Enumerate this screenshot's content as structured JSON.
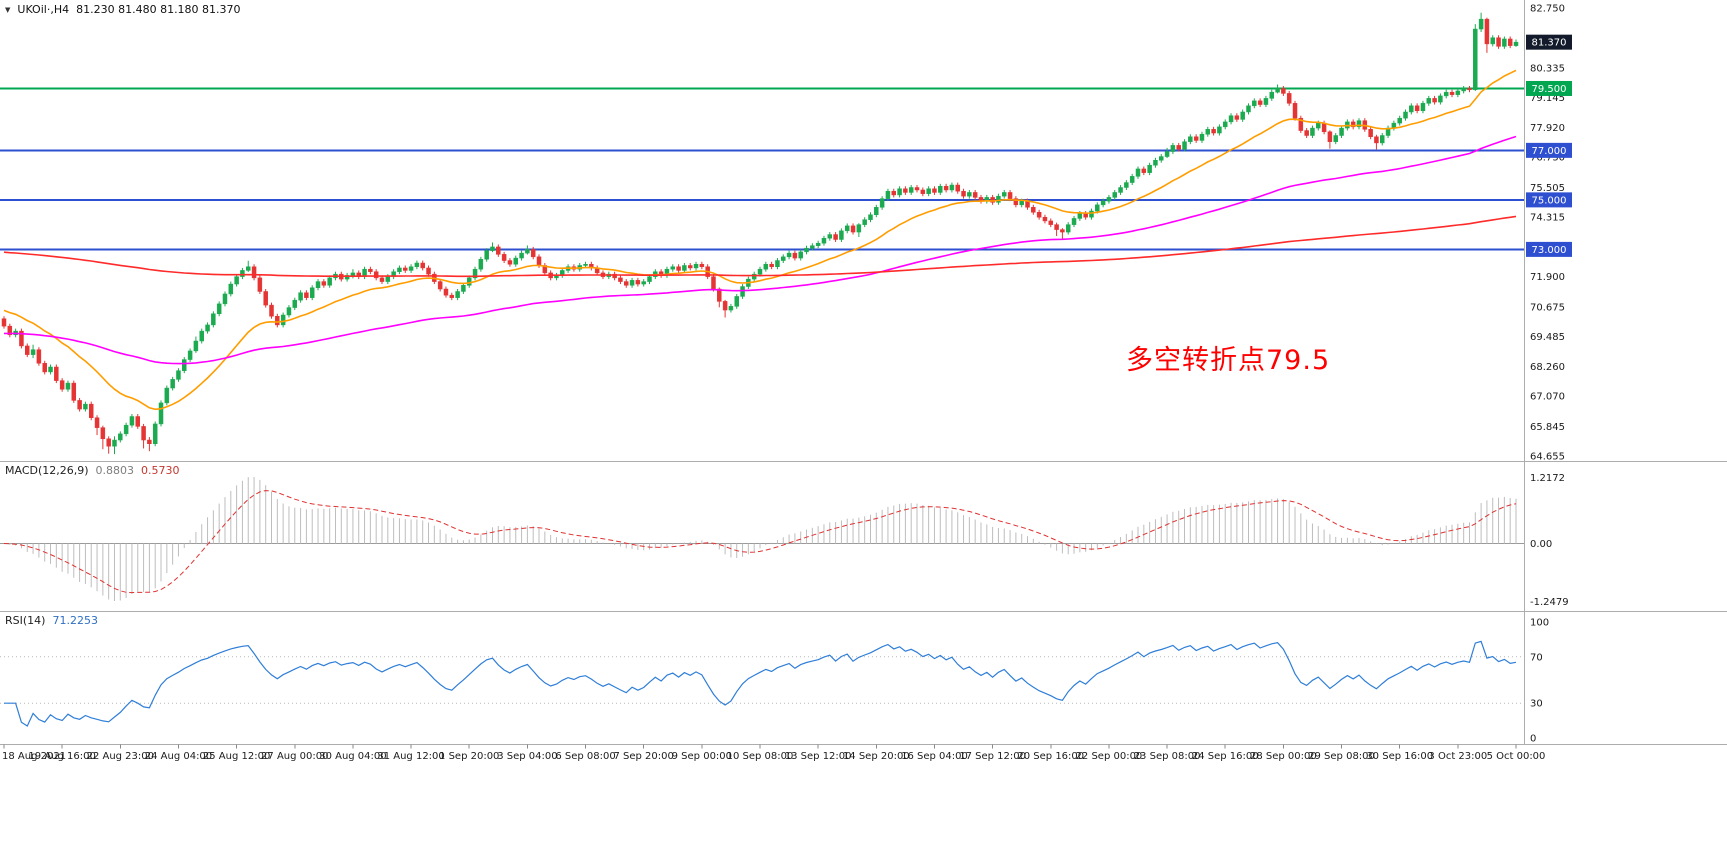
{
  "header": {
    "dropdown_icon": "▼",
    "symbol": "UKOil·,H4",
    "ohlc": "81.230 81.480 81.180 81.370"
  },
  "chart_data": {
    "type": "candlestick",
    "symbol": "UKOil",
    "timeframe": "H4",
    "main": {
      "price_axis": {
        "max": 82.75,
        "min": 64.655,
        "labels": [
          {
            "text": "82.750",
            "price": 82.75
          },
          {
            "text": "80.335",
            "price": 80.335
          },
          {
            "text": "79.145",
            "price": 79.145
          },
          {
            "text": "77.920",
            "price": 77.92
          },
          {
            "text": "76.730",
            "price": 76.73
          },
          {
            "text": "75.505",
            "price": 75.505
          },
          {
            "text": "74.315",
            "price": 74.315
          },
          {
            "text": "71.900",
            "price": 71.9
          },
          {
            "text": "70.675",
            "price": 70.675
          },
          {
            "text": "69.485",
            "price": 69.485
          },
          {
            "text": "68.260",
            "price": 68.26
          },
          {
            "text": "67.070",
            "price": 67.07
          },
          {
            "text": "65.845",
            "price": 65.845
          },
          {
            "text": "64.655",
            "price": 64.655
          }
        ]
      },
      "current_price": {
        "label": "81.370",
        "price": 81.37,
        "box_color": "#131a2b"
      },
      "hlines": [
        {
          "price": 79.5,
          "label": "79.500",
          "color": "#00a650"
        },
        {
          "price": 77.0,
          "label": "77.000",
          "color": "#2e4fd0"
        },
        {
          "price": 75.0,
          "label": "75.000",
          "color": "#2e4fd0"
        },
        {
          "price": 73.0,
          "label": "73.000",
          "color": "#2e4fd0"
        }
      ],
      "annotation": {
        "text": "多空转折点79.5",
        "color": "#ff0000"
      },
      "up_color": "#1caa50",
      "down_color": "#e43434",
      "candles": {
        "first_open": 70.2,
        "default_wick": 0.1,
        "closes": [
          69.9,
          69.55,
          69.7,
          69.1,
          68.75,
          68.95,
          68.4,
          68.05,
          68.25,
          67.7,
          67.35,
          67.6,
          66.9,
          66.55,
          66.75,
          66.2,
          65.8,
          65.35,
          65.05,
          65.3,
          65.55,
          65.9,
          66.25,
          65.85,
          65.3,
          65.15,
          65.95,
          66.8,
          67.4,
          67.75,
          68.1,
          68.55,
          68.9,
          69.3,
          69.7,
          69.95,
          70.4,
          70.8,
          71.2,
          71.6,
          71.9,
          72.15,
          72.3,
          71.85,
          71.3,
          70.75,
          70.3,
          69.95,
          70.35,
          70.65,
          70.95,
          71.25,
          71.05,
          71.45,
          71.7,
          71.55,
          71.85,
          72.0,
          71.8,
          71.95,
          72.05,
          71.9,
          72.2,
          72.1,
          71.85,
          71.7,
          71.9,
          72.1,
          72.25,
          72.15,
          72.3,
          72.45,
          72.25,
          72.0,
          71.7,
          71.4,
          71.15,
          71.05,
          71.3,
          71.55,
          71.85,
          72.2,
          72.6,
          72.95,
          73.1,
          72.8,
          72.55,
          72.4,
          72.65,
          72.85,
          73.0,
          72.7,
          72.35,
          72.05,
          71.85,
          71.95,
          72.15,
          72.3,
          72.2,
          72.35,
          72.4,
          72.25,
          72.05,
          71.9,
          72.0,
          71.85,
          71.7,
          71.55,
          71.75,
          71.6,
          71.7,
          71.9,
          72.1,
          71.95,
          72.2,
          72.3,
          72.15,
          72.35,
          72.25,
          72.4,
          72.3,
          71.9,
          71.4,
          70.9,
          70.55,
          70.7,
          71.1,
          71.5,
          71.8,
          72.0,
          72.2,
          72.4,
          72.3,
          72.55,
          72.7,
          72.85,
          72.65,
          72.9,
          73.05,
          73.15,
          73.25,
          73.45,
          73.6,
          73.4,
          73.75,
          73.95,
          73.7,
          74.0,
          74.2,
          74.4,
          74.7,
          75.05,
          75.35,
          75.2,
          75.45,
          75.3,
          75.5,
          75.4,
          75.25,
          75.45,
          75.3,
          75.55,
          75.4,
          75.6,
          75.35,
          75.15,
          75.3,
          75.1,
          74.95,
          75.1,
          74.9,
          75.15,
          75.3,
          75.05,
          74.8,
          74.95,
          74.7,
          74.5,
          74.3,
          74.15,
          74.0,
          73.8,
          73.7,
          74.0,
          74.25,
          74.45,
          74.3,
          74.55,
          74.8,
          74.95,
          75.1,
          75.3,
          75.5,
          75.7,
          75.95,
          76.25,
          76.1,
          76.4,
          76.6,
          76.75,
          76.95,
          77.2,
          77.05,
          77.35,
          77.55,
          77.4,
          77.65,
          77.85,
          77.7,
          77.95,
          78.15,
          78.4,
          78.25,
          78.55,
          78.8,
          79.0,
          78.85,
          79.1,
          79.35,
          79.5,
          79.3,
          78.9,
          78.3,
          77.8,
          77.6,
          77.9,
          78.1,
          77.75,
          77.35,
          77.6,
          77.9,
          78.15,
          77.95,
          78.2,
          77.85,
          77.55,
          77.3,
          77.6,
          77.9,
          78.1,
          78.3,
          78.55,
          78.8,
          78.6,
          78.9,
          79.1,
          78.95,
          79.2,
          79.35,
          79.25,
          79.4,
          79.5,
          79.45,
          81.9,
          82.3,
          81.3,
          81.55,
          81.2,
          81.5,
          81.23,
          81.37
        ],
        "wick_overrides": {
          "5": [
            0.2,
            0.14
          ],
          "16": [
            0.1,
            0.3
          ],
          "17": [
            0.08,
            0.42
          ],
          "18": [
            0.1,
            0.3
          ],
          "19": [
            0.15,
            0.32
          ],
          "24": [
            0.1,
            0.34
          ],
          "25": [
            0.12,
            0.3
          ],
          "33": [
            0.18,
            0.08
          ],
          "42": [
            0.24,
            0.06
          ],
          "60": [
            0.15,
            0.12
          ],
          "84": [
            0.18,
            0.06
          ],
          "90": [
            0.16,
            0.06
          ],
          "123": [
            0.06,
            0.24
          ],
          "124": [
            0.06,
            0.3
          ],
          "147": [
            0.06,
            0.2
          ],
          "181": [
            0.08,
            0.26
          ],
          "182": [
            0.06,
            0.3
          ],
          "200": [
            0.15,
            0.06
          ],
          "219": [
            0.16,
            0.05
          ],
          "228": [
            0.06,
            0.28
          ],
          "236": [
            0.08,
            0.26
          ],
          "253": [
            0.2,
            0.05
          ],
          "254": [
            0.26,
            0.12
          ],
          "255": [
            0.06,
            0.36
          ],
          "260": [
            0.11,
            0.05
          ]
        }
      },
      "moving_averages": [
        {
          "name": "ma-fast",
          "period": 21,
          "seed": 70.6,
          "color": "#ff9d00"
        },
        {
          "name": "ma-medium",
          "period": 100,
          "seed": 69.6,
          "color": "#ff00ff"
        },
        {
          "name": "ma-slow",
          "period": 400,
          "seed": 72.9,
          "color": "#ff2a2a"
        }
      ]
    },
    "macd": {
      "title": "MACD(12,26,9)",
      "value_main": "0.8803",
      "value_signal": "0.5730",
      "fast": 12,
      "slow": 26,
      "signal": 9,
      "scale_labels": [
        "1.2172",
        "0.00",
        "-1.2479"
      ],
      "histogram_color": "#bdbdbd",
      "signal_color": "#e03131",
      "zero_color": "#9a9a9a"
    },
    "rsi": {
      "title": "RSI(14)",
      "value": "71.2253",
      "period": 14,
      "levels": [
        70,
        30
      ],
      "scale_labels": [
        {
          "text": "100",
          "value": 100
        },
        {
          "text": "70",
          "value": 70
        },
        {
          "text": "30",
          "value": 30
        },
        {
          "text": "0",
          "value": 0
        }
      ],
      "line_color": "#2f7ed8",
      "level_color": "#b9b9b9"
    },
    "time_axis": {
      "stride": 10,
      "labels": [
        "18 Aug 2021",
        "19 Aug 16:00",
        "22 Aug 23:00",
        "24 Aug 04:00",
        "25 Aug 12:00",
        "27 Aug 00:00",
        "30 Aug 04:00",
        "31 Aug 12:00",
        "1 Sep 20:00",
        "3 Sep 04:00",
        "6 Sep 08:00",
        "7 Sep 20:00",
        "9 Sep 00:00",
        "10 Sep 08:00",
        "13 Sep 12:00",
        "14 Sep 20:00",
        "16 Sep 04:00",
        "17 Sep 12:00",
        "20 Sep 16:00",
        "22 Sep 00:00",
        "23 Sep 08:00",
        "24 Sep 16:00",
        "28 Sep 00:00",
        "29 Sep 08:00",
        "30 Sep 16:00",
        "3 Oct 23:00",
        "5 Oct 00:00"
      ]
    }
  }
}
